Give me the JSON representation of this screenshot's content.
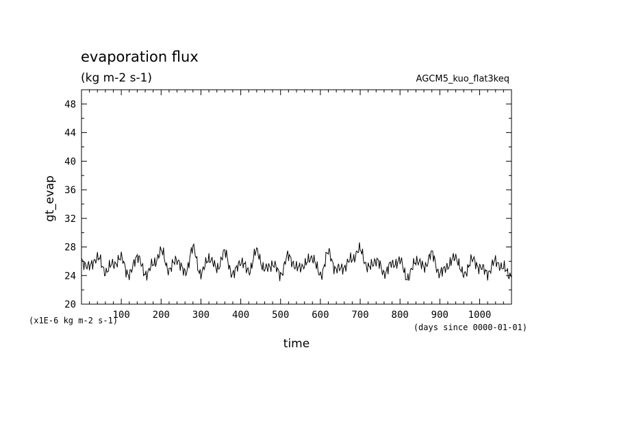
{
  "chart_data": {
    "type": "line",
    "title": "evaporation flux",
    "subtitle": "(kg m-2 s-1)",
    "experiment": "AGCM5_kuo_flat3keq",
    "xlabel": "time",
    "x_units": "(days since 0000-01-01)",
    "ylabel": "gt_evap",
    "y_units": "(x1E-6 kg m-2 s-1)",
    "xlim": [
      0,
      1080
    ],
    "ylim": [
      20,
      50
    ],
    "x_ticks": [
      "100",
      "200",
      "300",
      "400",
      "500",
      "600",
      "700",
      "800",
      "900",
      "1000"
    ],
    "y_ticks": [
      "20",
      "24",
      "28",
      "32",
      "36",
      "40",
      "44",
      "48"
    ],
    "grid": false,
    "series": [
      {
        "x": [
          0,
          20,
          40,
          60,
          80,
          100,
          120,
          140,
          160,
          180,
          200,
          220,
          240,
          260,
          280,
          300,
          320,
          340,
          360,
          380,
          400,
          420,
          440,
          460,
          480,
          500,
          520,
          540,
          560,
          580,
          600,
          620,
          640,
          660,
          680,
          700,
          720,
          740,
          760,
          780,
          800,
          820,
          840,
          860,
          880,
          900,
          920,
          940,
          960,
          980,
          1000,
          1020,
          1040,
          1060,
          1080
        ],
        "y": [
          26.0,
          25.2,
          26.6,
          24.6,
          25.6,
          26.4,
          24.0,
          26.8,
          24.2,
          25.5,
          27.4,
          24.8,
          26.3,
          24.3,
          27.8,
          24.2,
          26.5,
          25.0,
          27.2,
          24.1,
          26.0,
          24.6,
          27.4,
          24.8,
          25.6,
          24.2,
          26.8,
          25.0,
          25.5,
          26.6,
          24.0,
          27.2,
          24.8,
          25.2,
          26.4,
          27.6,
          25.0,
          26.2,
          24.4,
          25.6,
          26.0,
          23.6,
          26.2,
          25.2,
          27.0,
          24.2,
          25.4,
          26.6,
          24.0,
          26.2,
          25.2,
          24.4,
          26.0,
          25.0,
          24.0
        ]
      }
    ]
  }
}
